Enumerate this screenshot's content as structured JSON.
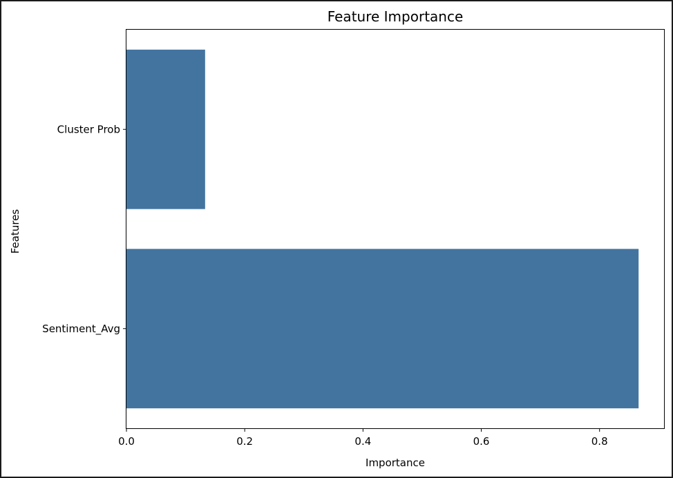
{
  "chart_data": {
    "type": "bar",
    "orientation": "horizontal",
    "title": "Feature Importance",
    "xlabel": "Importance",
    "ylabel": "Features",
    "categories": [
      "Cluster Prob",
      "Sentiment_Avg"
    ],
    "values": [
      0.133,
      0.866
    ],
    "xlim": [
      0,
      0.909
    ],
    "xticks": [
      0.0,
      0.2,
      0.4,
      0.6,
      0.8
    ],
    "xtick_labels": [
      "0.0",
      "0.2",
      "0.4",
      "0.6",
      "0.8"
    ],
    "grid": false,
    "legend": "none",
    "bar_color": "#4374a0"
  }
}
